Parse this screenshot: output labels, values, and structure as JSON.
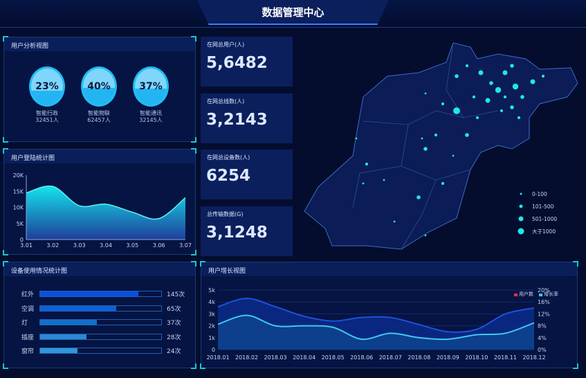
{
  "header": {
    "title": "数据管理中心"
  },
  "user_analysis": {
    "title": "用户分析视图",
    "items": [
      {
        "percent": "23%",
        "fill": 0.23,
        "name": "智能行政",
        "count": "32451人"
      },
      {
        "percent": "40%",
        "fill": 0.4,
        "name": "智能物联",
        "count": "62457人"
      },
      {
        "percent": "37%",
        "fill": 0.37,
        "name": "智能通讯",
        "count": "32145人"
      }
    ]
  },
  "stats": [
    {
      "label": "在网总用户(人)",
      "value": "5,6482"
    },
    {
      "label": "在网总线数(人)",
      "value": "3,2143"
    },
    {
      "label": "在网总设备数(人)",
      "value": "6254"
    },
    {
      "label": "总传输数据(G)",
      "value": "3,1248"
    }
  ],
  "map_legend": [
    "0-100",
    "101-500",
    "501-1000",
    "大于1000"
  ],
  "device_usage": {
    "title": "设备使用情况统计图",
    "items": [
      {
        "name": "红外",
        "count": "145次",
        "fill": 0.81,
        "color": "#0b4fe0"
      },
      {
        "name": "空调",
        "count": "65次",
        "fill": 0.63,
        "color": "#0c62d4"
      },
      {
        "name": "灯",
        "count": "37次",
        "fill": 0.47,
        "color": "#1170cc"
      },
      {
        "name": "插座",
        "count": "28次",
        "fill": 0.38,
        "color": "#2a8ad2"
      },
      {
        "name": "窗帘",
        "count": "24次",
        "fill": 0.31,
        "color": "#3196d6"
      }
    ]
  },
  "chart_data": [
    {
      "type": "area",
      "title": "用户登陆统计图",
      "categories": [
        "3.01",
        "3.02",
        "3.03",
        "3.04",
        "3.05",
        "3.06",
        "3.07"
      ],
      "values": [
        14500,
        16500,
        10500,
        11000,
        8500,
        6500,
        13000
      ],
      "ylim": [
        0,
        20000
      ],
      "yticks": [
        "0",
        "5K",
        "10K",
        "15K",
        "20K"
      ]
    },
    {
      "type": "area",
      "title": "用户增长视图",
      "categories": [
        "2018.01",
        "2018.02",
        "2018.03",
        "2018.04",
        "2018.05",
        "2018.06",
        "2018.07",
        "2018.08",
        "2018.09",
        "2018.10",
        "2018.11",
        "2018.12"
      ],
      "series": [
        {
          "name": "用户数",
          "axis": "left",
          "values": [
            3600,
            4300,
            3600,
            2800,
            2400,
            2700,
            2700,
            2100,
            1500,
            1700,
            3000,
            3500
          ],
          "color": "#e8334a"
        },
        {
          "name": "增长率",
          "axis": "right",
          "values": [
            8.5,
            11.5,
            8,
            8,
            7.5,
            3.5,
            5.5,
            4,
            3.5,
            5,
            5.5,
            9
          ],
          "color": "#38c8f0"
        }
      ],
      "ylim": [
        0,
        5000
      ],
      "ylim_right": [
        0,
        20
      ],
      "yticks": [
        "0",
        "1k",
        "2k",
        "3k",
        "4k",
        "5k"
      ],
      "yticks_right": [
        "0%",
        "4%",
        "8%",
        "12%",
        "16%",
        "20%"
      ],
      "legend": "top-right"
    }
  ]
}
